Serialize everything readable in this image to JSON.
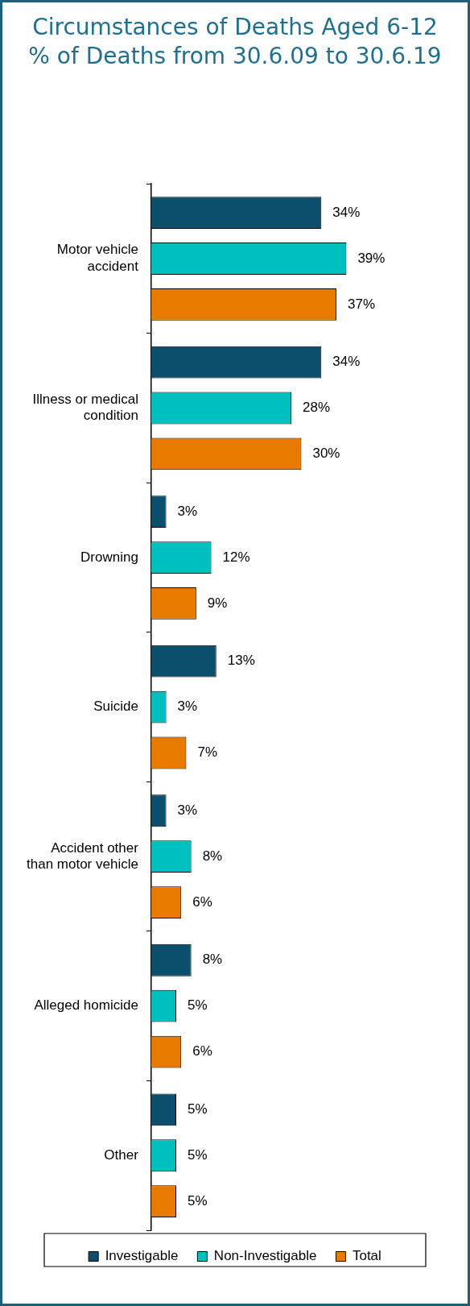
{
  "chart_data": {
    "type": "bar",
    "orientation": "horizontal",
    "title": "Circumstances of Deaths Aged 6-12",
    "subtitle": "% of Deaths from 30.6.09 to 30.6.19",
    "categories": [
      "Motor vehicle accident",
      "Illness or medical condition",
      "Drowning",
      "Suicide",
      "Accident other than motor vehicle",
      "Alleged homicide",
      "Other"
    ],
    "series": [
      {
        "name": "Investigable",
        "color": "#0b4f6c",
        "values": [
          34,
          34,
          3,
          13,
          3,
          8,
          5
        ],
        "value_labels": [
          "34%",
          "34%",
          "3%",
          "13%",
          "3%",
          "8%",
          "5%"
        ]
      },
      {
        "name": "Non-Investigable",
        "color": "#00bfbf",
        "values": [
          39,
          28,
          12,
          3,
          8,
          5,
          5
        ],
        "value_labels": [
          "39%",
          "28%",
          "12%",
          "3%",
          "8%",
          "5%",
          "5%"
        ]
      },
      {
        "name": "Total",
        "color": "#e87a00",
        "values": [
          37,
          30,
          9,
          7,
          6,
          6,
          5
        ],
        "value_labels": [
          "37%",
          "30%",
          "9%",
          "7%",
          "6%",
          "6%",
          "5%"
        ]
      }
    ],
    "legend": "bottom",
    "grid": false
  }
}
